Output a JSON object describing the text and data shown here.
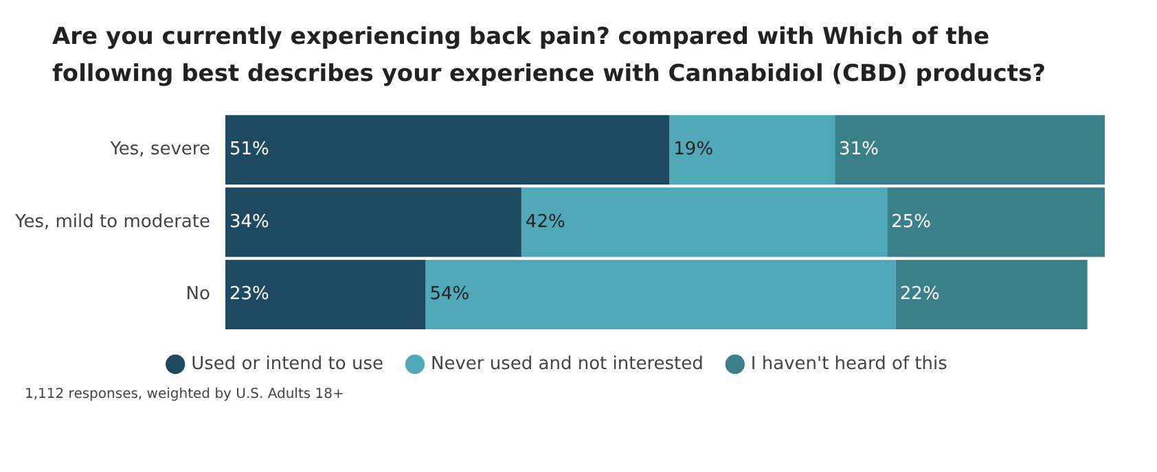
{
  "chart_data": {
    "type": "bar",
    "orientation": "horizontal",
    "stacked": true,
    "title": "Are you currently experiencing back pain? compared with Which of the following best describes your experience with Cannabidiol (CBD) products?",
    "categories": [
      "Yes, severe",
      "Yes, mild to moderate",
      "No"
    ],
    "series": [
      {
        "name": "Used or intend to use",
        "color": "#1d4a60",
        "values": [
          51,
          34,
          23
        ],
        "value_labels": [
          "51%",
          "34%",
          "23%"
        ]
      },
      {
        "name": "Never used and not interested",
        "color": "#4fa9b9",
        "values": [
          19,
          42,
          54
        ],
        "value_labels": [
          "19%",
          "42%",
          "54%"
        ]
      },
      {
        "name": "I haven't heard of this",
        "color": "#3b7f88",
        "values": [
          31,
          25,
          22
        ],
        "value_labels": [
          "31%",
          "25%",
          "22%"
        ]
      }
    ],
    "xlim": [
      0,
      101
    ],
    "tick_labels": "y",
    "legend": "bottom",
    "annotations": [
      "1,112 responses, weighted by U.S. Adults 18+"
    ]
  }
}
